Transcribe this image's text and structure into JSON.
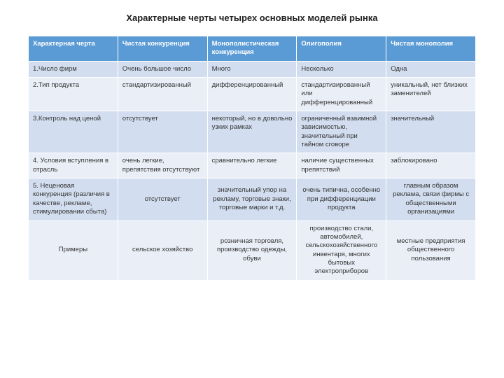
{
  "title": "Характерные черты четырех основных моделей рынка",
  "table": {
    "header_bg": "#5b9bd5",
    "row_bg_a": "#d2deef",
    "row_bg_b": "#eaeff7",
    "columns": [
      "Характерная черта",
      "Чистая конкуренция",
      "Монополистическая конкуренция",
      "Олигополия",
      "Чистая монополия"
    ],
    "col_widths": [
      "20%",
      "20%",
      "20%",
      "20%",
      "20%"
    ],
    "rows": [
      {
        "align": "left",
        "cells": [
          "1.Число фирм",
          "Очень большое число",
          "Много",
          "Несколько",
          "Одна"
        ]
      },
      {
        "align": "left",
        "cells": [
          "2.Тип продукта",
          "стандартизированный",
          "дифференцированный",
          "стандартизированный или дифференцированный",
          "уникальный, нет близких заменителей"
        ]
      },
      {
        "align": "left",
        "cells": [
          "3.Контроль над ценой",
          "отсутствует",
          "некоторый, но в довольно узких рамках",
          "ограниченный взаимной зависимостью, значительный при тайном сговоре",
          "значительный"
        ]
      },
      {
        "align": "left",
        "cells": [
          "4. Условия вступления в отрасль",
          "очень легкие, препятствия отсутствуют",
          "сравнительно легкие",
          "наличие существенных препятствий",
          "заблокировано"
        ]
      },
      {
        "align": "center",
        "cells": [
          "5. Неценовая конкуренция (различия в качестве, рекламе, стимулировании сбыта)",
          "отсутствует",
          "значительный упор на рекламу, торговые знаки, торговые марки и т.д.",
          "очень типична, особенно при дифференциации продукта",
          "главным образом реклама, связи фирмы с общественными организациями"
        ]
      },
      {
        "align": "center",
        "cells": [
          "Примеры",
          "сельское хозяйство",
          "розничная торговля, производство одежды, обуви",
          "производство стали, автомобилей, сельскохозяйственного инвентаря, многих бытовых электроприборов",
          "местные предприятия общественного пользования"
        ]
      }
    ]
  }
}
